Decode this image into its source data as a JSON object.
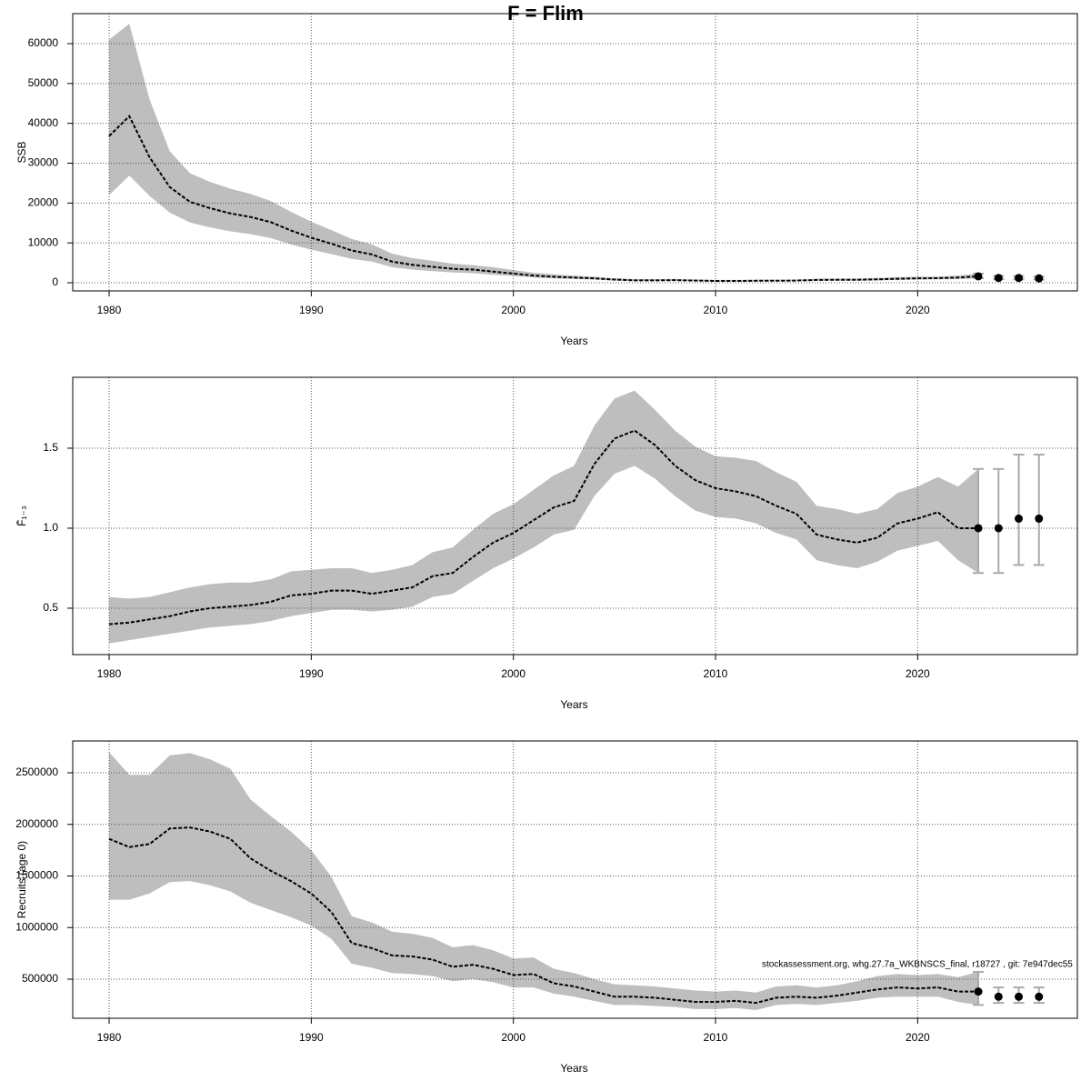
{
  "chart_data": [
    {
      "type": "line",
      "title": "F = Flim",
      "xlabel": "Years",
      "ylabel": "SSB",
      "x": [
        1980,
        1981,
        1982,
        1983,
        1984,
        1985,
        1986,
        1987,
        1988,
        1989,
        1990,
        1991,
        1992,
        1993,
        1994,
        1995,
        1996,
        1997,
        1998,
        1999,
        2000,
        2001,
        2002,
        2003,
        2004,
        2005,
        2006,
        2007,
        2008,
        2009,
        2010,
        2011,
        2012,
        2013,
        2014,
        2015,
        2016,
        2017,
        2018,
        2019,
        2020,
        2021,
        2022,
        2023
      ],
      "values": [
        36800,
        41800,
        31500,
        24000,
        20300,
        18700,
        17400,
        16500,
        15200,
        13100,
        11300,
        9800,
        8100,
        7100,
        5300,
        4500,
        4000,
        3500,
        3300,
        2800,
        2300,
        1800,
        1500,
        1300,
        1100,
        800,
        600,
        600,
        650,
        550,
        450,
        450,
        500,
        500,
        550,
        700,
        750,
        750,
        850,
        1000,
        1100,
        1150,
        1300,
        1600
      ],
      "upper": [
        61000,
        65000,
        46000,
        33000,
        27500,
        25300,
        23600,
        22300,
        20500,
        17800,
        15300,
        13200,
        11000,
        9600,
        7300,
        6200,
        5500,
        4800,
        4400,
        3900,
        3200,
        2500,
        2100,
        1800,
        1500,
        1100,
        900,
        900,
        950,
        800,
        700,
        700,
        750,
        750,
        800,
        1000,
        1050,
        1050,
        1200,
        1400,
        1500,
        1550,
        1800,
        2300
      ],
      "lower": [
        22000,
        26900,
        21800,
        17600,
        15100,
        13900,
        12900,
        12200,
        11200,
        9600,
        8300,
        7200,
        6000,
        5300,
        3900,
        3300,
        2900,
        2600,
        2400,
        2000,
        1700,
        1300,
        1100,
        950,
        800,
        550,
        450,
        450,
        450,
        400,
        300,
        300,
        350,
        350,
        400,
        500,
        550,
        550,
        600,
        700,
        800,
        850,
        950,
        1150
      ],
      "forecast": {
        "x": [
          2023,
          2024,
          2025,
          2026
        ],
        "values": [
          1600,
          1200,
          1200,
          1100
        ],
        "lower": [
          1150,
          900,
          850,
          800
        ],
        "upper": [
          2300,
          1700,
          1650,
          1550
        ]
      },
      "color": "#000000",
      "band_color": "#bebebe",
      "error_color": "#aaaaaa",
      "xlim": [
        1978.2,
        2027.9
      ],
      "xticks": [
        1980,
        1990,
        2000,
        2010,
        2020
      ],
      "ylim": [
        -2053,
        67528
      ],
      "yticks": [
        0,
        10000,
        20000,
        30000,
        40000,
        50000,
        60000
      ],
      "grid": true
    },
    {
      "type": "line",
      "xlabel": "Years",
      "ylabel": "F̄₁₋₃",
      "x": [
        1980,
        1981,
        1982,
        1983,
        1984,
        1985,
        1986,
        1987,
        1988,
        1989,
        1990,
        1991,
        1992,
        1993,
        1994,
        1995,
        1996,
        1997,
        1998,
        1999,
        2000,
        2001,
        2002,
        2003,
        2004,
        2005,
        2006,
        2007,
        2008,
        2009,
        2010,
        2011,
        2012,
        2013,
        2014,
        2015,
        2016,
        2017,
        2018,
        2019,
        2020,
        2021,
        2022,
        2023
      ],
      "values": [
        0.4,
        0.41,
        0.43,
        0.45,
        0.48,
        0.5,
        0.51,
        0.52,
        0.54,
        0.58,
        0.59,
        0.61,
        0.61,
        0.59,
        0.61,
        0.63,
        0.7,
        0.72,
        0.82,
        0.91,
        0.97,
        1.05,
        1.13,
        1.17,
        1.4,
        1.56,
        1.61,
        1.52,
        1.39,
        1.3,
        1.25,
        1.23,
        1.2,
        1.14,
        1.09,
        0.96,
        0.93,
        0.91,
        0.94,
        1.03,
        1.06,
        1.1,
        1.0,
        1.0
      ],
      "upper": [
        0.57,
        0.56,
        0.57,
        0.6,
        0.63,
        0.65,
        0.66,
        0.66,
        0.68,
        0.73,
        0.74,
        0.75,
        0.75,
        0.72,
        0.74,
        0.77,
        0.85,
        0.88,
        0.99,
        1.09,
        1.15,
        1.24,
        1.33,
        1.39,
        1.64,
        1.81,
        1.86,
        1.74,
        1.61,
        1.51,
        1.45,
        1.44,
        1.42,
        1.35,
        1.29,
        1.14,
        1.12,
        1.09,
        1.12,
        1.22,
        1.26,
        1.32,
        1.26,
        1.37
      ],
      "lower": [
        0.28,
        0.3,
        0.32,
        0.34,
        0.36,
        0.38,
        0.39,
        0.4,
        0.42,
        0.45,
        0.47,
        0.49,
        0.49,
        0.48,
        0.49,
        0.51,
        0.57,
        0.59,
        0.67,
        0.75,
        0.81,
        0.88,
        0.96,
        0.99,
        1.2,
        1.34,
        1.39,
        1.31,
        1.2,
        1.11,
        1.07,
        1.06,
        1.03,
        0.97,
        0.93,
        0.8,
        0.77,
        0.75,
        0.79,
        0.86,
        0.89,
        0.92,
        0.8,
        0.72
      ],
      "forecast": {
        "x": [
          2023,
          2024,
          2025,
          2026
        ],
        "values": [
          1.0,
          1.0,
          1.06,
          1.06
        ],
        "lower": [
          0.72,
          0.72,
          0.77,
          0.77
        ],
        "upper": [
          1.37,
          1.37,
          1.46,
          1.46
        ]
      },
      "color": "#000000",
      "band_color": "#bebebe",
      "error_color": "#aaaaaa",
      "xlim": [
        1978.2,
        2027.9
      ],
      "xticks": [
        1980,
        1990,
        2000,
        2010,
        2020
      ],
      "ylim": [
        0.21,
        1.943
      ],
      "yticks": [
        0.5,
        {
          "value": 1,
          "label": "1.0"
        },
        1.5
      ],
      "grid": true
    },
    {
      "type": "line",
      "xlabel": "Years",
      "ylabel": "Recruits (age 0)",
      "annotation": "stockassessment.org, whg.27.7a_WKBNSCS_final, r18727 , git: 7e947dec55",
      "x": [
        1980,
        1981,
        1982,
        1983,
        1984,
        1985,
        1986,
        1987,
        1988,
        1989,
        1990,
        1991,
        1992,
        1993,
        1994,
        1995,
        1996,
        1997,
        1998,
        1999,
        2000,
        2001,
        2002,
        2003,
        2004,
        2005,
        2006,
        2007,
        2008,
        2009,
        2010,
        2011,
        2012,
        2013,
        2014,
        2015,
        2016,
        2017,
        2018,
        2019,
        2020,
        2021,
        2022,
        2023
      ],
      "values": [
        1860000,
        1780000,
        1810000,
        1960000,
        1970000,
        1930000,
        1860000,
        1670000,
        1550000,
        1450000,
        1330000,
        1150000,
        850000,
        800000,
        730000,
        720000,
        690000,
        620000,
        640000,
        600000,
        540000,
        550000,
        460000,
        430000,
        380000,
        330000,
        330000,
        320000,
        300000,
        280000,
        280000,
        290000,
        270000,
        320000,
        330000,
        320000,
        340000,
        370000,
        400000,
        420000,
        410000,
        420000,
        380000,
        380000
      ],
      "upper": [
        2700000,
        2480000,
        2480000,
        2670000,
        2690000,
        2630000,
        2540000,
        2240000,
        2080000,
        1930000,
        1750000,
        1490000,
        1110000,
        1050000,
        960000,
        940000,
        900000,
        810000,
        830000,
        780000,
        700000,
        710000,
        600000,
        560000,
        500000,
        450000,
        440000,
        430000,
        410000,
        390000,
        380000,
        390000,
        370000,
        430000,
        440000,
        420000,
        440000,
        480000,
        530000,
        550000,
        540000,
        550000,
        520000,
        570000
      ],
      "lower": [
        1270000,
        1270000,
        1330000,
        1440000,
        1450000,
        1410000,
        1350000,
        1240000,
        1170000,
        1100000,
        1020000,
        890000,
        650000,
        610000,
        560000,
        550000,
        530000,
        480000,
        500000,
        470000,
        420000,
        420000,
        360000,
        330000,
        290000,
        250000,
        250000,
        240000,
        230000,
        210000,
        210000,
        220000,
        200000,
        250000,
        260000,
        250000,
        270000,
        290000,
        320000,
        330000,
        330000,
        330000,
        280000,
        250000
      ],
      "forecast": {
        "x": [
          2023,
          2024,
          2025,
          2026
        ],
        "values": [
          380000,
          330000,
          330000,
          330000
        ],
        "lower": [
          250000,
          270000,
          270000,
          270000
        ],
        "upper": [
          570000,
          420000,
          420000,
          420000
        ]
      },
      "color": "#000000",
      "band_color": "#bebebe",
      "error_color": "#aaaaaa",
      "xlim": [
        1978.2,
        2027.9
      ],
      "xticks": [
        1980,
        1990,
        2000,
        2010,
        2020
      ],
      "ylim": [
        121145,
        2808370
      ],
      "yticks": [
        500000,
        1000000,
        1500000,
        2000000,
        2500000
      ],
      "grid": true
    }
  ]
}
